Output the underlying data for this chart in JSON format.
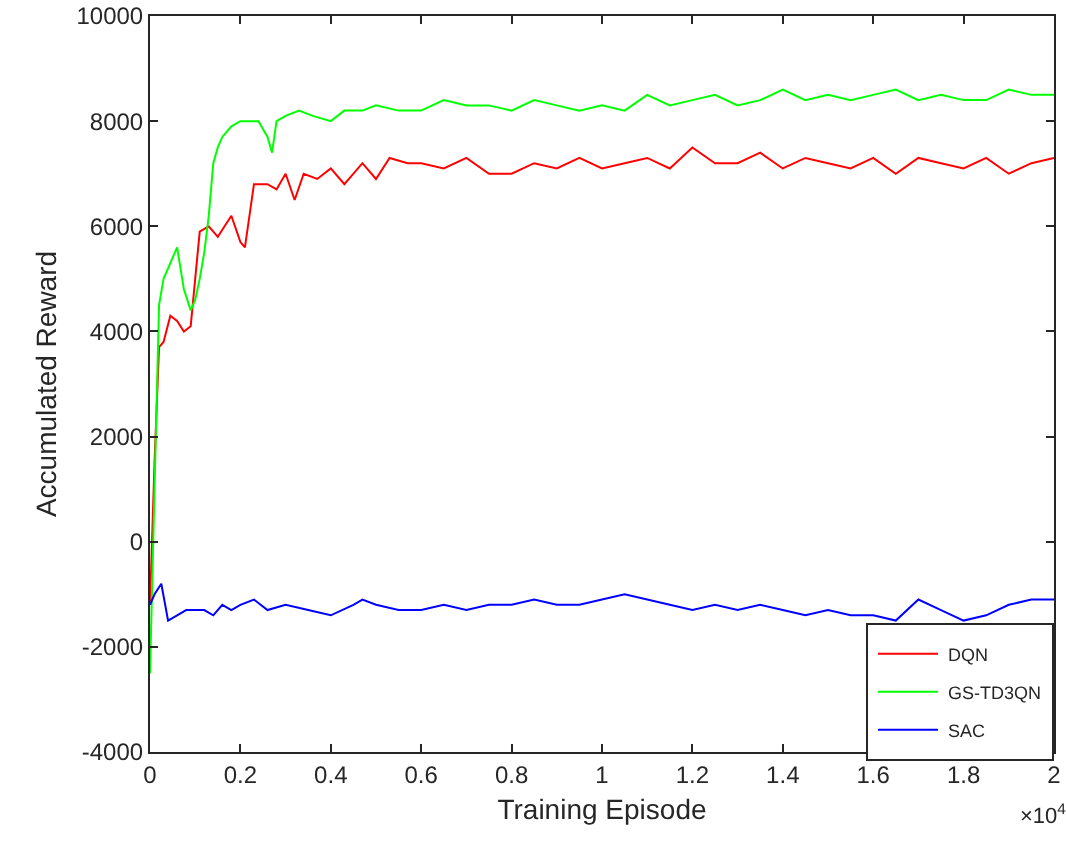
{
  "chart_data": {
    "type": "line",
    "xlabel": "Training Episode",
    "ylabel": "Accumulated Reward",
    "annotations": [
      "×10$^{4}$"
    ],
    "xlim": [
      0,
      2
    ],
    "xticks": [
      0,
      0.2,
      0.4,
      0.6,
      0.8,
      1,
      1.2,
      1.4,
      1.6,
      1.8,
      2
    ],
    "ylim": [
      -4000,
      10000
    ],
    "yticks": [
      -4000,
      -2000,
      0,
      2000,
      4000,
      6000,
      8000,
      10000
    ],
    "grid": false,
    "legend": "bottom right",
    "marker": "none",
    "line_style": "solid",
    "series": [
      {
        "name": "DQN",
        "color": "#ff0000",
        "x": [
          0,
          0.01,
          0.02,
          0.03,
          0.045,
          0.06,
          0.075,
          0.09,
          0.1,
          0.11,
          0.13,
          0.15,
          0.165,
          0.18,
          0.2,
          0.21,
          0.22,
          0.23,
          0.26,
          0.28,
          0.3,
          0.32,
          0.34,
          0.37,
          0.4,
          0.43,
          0.47,
          0.5,
          0.53,
          0.57,
          0.6,
          0.65,
          0.7,
          0.75,
          0.8,
          0.85,
          0.9,
          0.95,
          1,
          1.05,
          1.1,
          1.15,
          1.2,
          1.25,
          1.3,
          1.35,
          1.4,
          1.45,
          1.5,
          1.55,
          1.6,
          1.65,
          1.7,
          1.75,
          1.8,
          1.85,
          1.9,
          1.95,
          2
        ],
        "values": [
          -1200,
          1500,
          3700,
          3800,
          4300,
          4200,
          4000,
          4100,
          5000,
          5900,
          6000,
          5800,
          6000,
          6200,
          5700,
          5600,
          6200,
          6800,
          6800,
          6700,
          7000,
          6500,
          7000,
          6900,
          7100,
          6800,
          7200,
          6900,
          7300,
          7200,
          7200,
          7100,
          7300,
          7000,
          7000,
          7200,
          7100,
          7300,
          7100,
          7200,
          7300,
          7100,
          7500,
          7200,
          7200,
          7400,
          7100,
          7300,
          7200,
          7100,
          7300,
          7000,
          7300,
          7200,
          7100,
          7300,
          7000,
          7200,
          7300
        ]
      },
      {
        "name": "GS-TD3QN",
        "color": "#00ff00",
        "x": [
          0,
          0.01,
          0.02,
          0.03,
          0.045,
          0.06,
          0.075,
          0.09,
          0.1,
          0.11,
          0.12,
          0.13,
          0.14,
          0.15,
          0.16,
          0.18,
          0.2,
          0.22,
          0.24,
          0.26,
          0.27,
          0.28,
          0.3,
          0.33,
          0.36,
          0.4,
          0.43,
          0.47,
          0.5,
          0.55,
          0.6,
          0.65,
          0.7,
          0.75,
          0.8,
          0.85,
          0.9,
          0.95,
          1,
          1.05,
          1.1,
          1.15,
          1.2,
          1.25,
          1.3,
          1.35,
          1.4,
          1.45,
          1.5,
          1.55,
          1.6,
          1.65,
          1.7,
          1.75,
          1.8,
          1.85,
          1.9,
          1.95,
          2
        ],
        "values": [
          -2500,
          1000,
          4500,
          5000,
          5300,
          5600,
          4800,
          4400,
          4600,
          5000,
          5500,
          6200,
          7200,
          7500,
          7700,
          7900,
          8000,
          8000,
          8000,
          7700,
          7400,
          8000,
          8100,
          8200,
          8100,
          8000,
          8200,
          8200,
          8300,
          8200,
          8200,
          8400,
          8300,
          8300,
          8200,
          8400,
          8300,
          8200,
          8300,
          8200,
          8500,
          8300,
          8400,
          8500,
          8300,
          8400,
          8600,
          8400,
          8500,
          8400,
          8500,
          8600,
          8400,
          8500,
          8400,
          8400,
          8600,
          8500,
          8500
        ]
      },
      {
        "name": "SAC",
        "color": "#0000ff",
        "x": [
          0,
          0.01,
          0.025,
          0.04,
          0.06,
          0.08,
          0.1,
          0.12,
          0.14,
          0.16,
          0.18,
          0.2,
          0.23,
          0.26,
          0.3,
          0.35,
          0.4,
          0.45,
          0.47,
          0.5,
          0.55,
          0.6,
          0.65,
          0.7,
          0.75,
          0.8,
          0.85,
          0.9,
          0.95,
          1,
          1.05,
          1.1,
          1.15,
          1.2,
          1.25,
          1.3,
          1.35,
          1.4,
          1.45,
          1.5,
          1.55,
          1.6,
          1.65,
          1.7,
          1.75,
          1.8,
          1.85,
          1.9,
          1.95,
          2
        ],
        "values": [
          -1200,
          -1000,
          -800,
          -1500,
          -1400,
          -1300,
          -1300,
          -1300,
          -1400,
          -1200,
          -1300,
          -1200,
          -1100,
          -1300,
          -1200,
          -1300,
          -1400,
          -1200,
          -1100,
          -1200,
          -1300,
          -1300,
          -1200,
          -1300,
          -1200,
          -1200,
          -1100,
          -1200,
          -1200,
          -1100,
          -1000,
          -1100,
          -1200,
          -1300,
          -1200,
          -1300,
          -1200,
          -1300,
          -1400,
          -1300,
          -1400,
          -1400,
          -1500,
          -1100,
          -1300,
          -1500,
          -1400,
          -1200,
          -1100,
          -1100
        ]
      }
    ]
  }
}
